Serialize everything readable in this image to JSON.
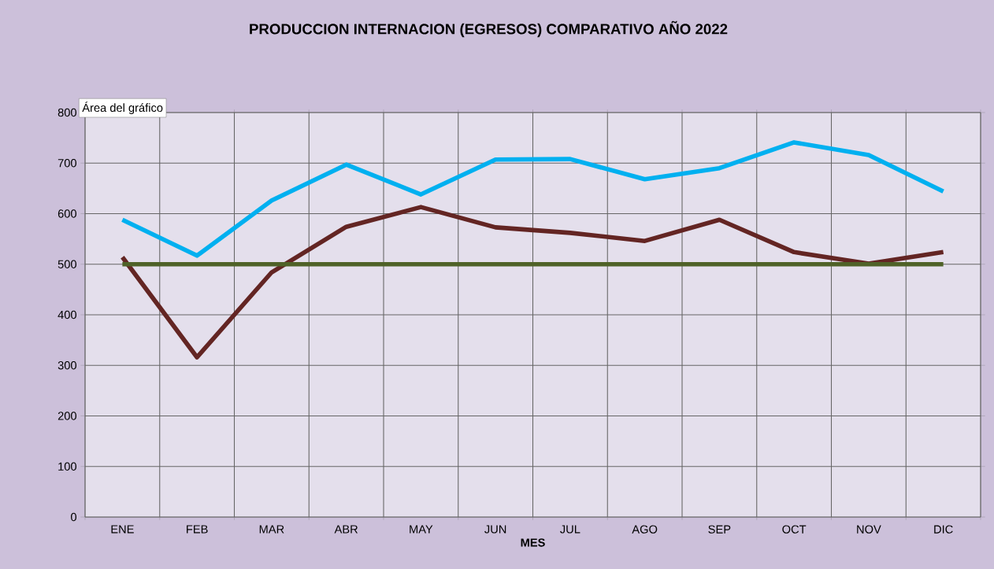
{
  "chart_data": {
    "type": "line",
    "title": "PRODUCCION INTERNACION  (EGRESOS) COMPARATIVO AÑO 2022",
    "xlabel": "MES",
    "annotations": [
      "Área del gráfico"
    ],
    "categories": [
      "ENE",
      "FEB",
      "MAR",
      "ABR",
      "MAY",
      "JUN",
      "JUL",
      "AGO",
      "SEP",
      "OCT",
      "NOV",
      "DIC"
    ],
    "series": [
      {
        "color": "#00b0f0",
        "values": [
          588,
          517,
          626,
          697,
          638,
          707,
          708,
          668,
          690,
          741,
          716,
          644
        ]
      },
      {
        "color": "#632523",
        "values": [
          514,
          316,
          484,
          574,
          613,
          573,
          562,
          546,
          588,
          524,
          501,
          524
        ]
      },
      {
        "color": "#4f6228",
        "values": [
          500,
          500,
          500,
          500,
          500,
          500,
          500,
          500,
          500,
          500,
          500,
          500
        ]
      }
    ],
    "ylim": [
      0,
      800
    ],
    "yticks": [
      0,
      100,
      200,
      300,
      400,
      500,
      600,
      700,
      800
    ],
    "grid": true,
    "marker": "none",
    "line_style": "solid"
  }
}
